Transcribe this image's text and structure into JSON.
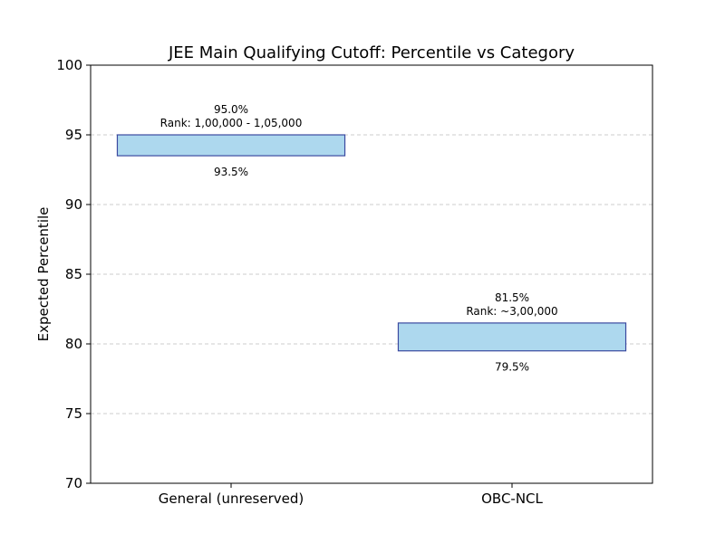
{
  "chart_data": {
    "type": "bar",
    "title": "JEE Main Qualifying Cutoff: Percentile vs Category",
    "xlabel": "",
    "ylabel": "Expected Percentile",
    "ylim": [
      70,
      100
    ],
    "yticks": [
      70,
      75,
      80,
      85,
      90,
      95,
      100
    ],
    "grid": true,
    "categories": [
      "General (unreserved)",
      "OBC-NCL"
    ],
    "ranges": [
      {
        "low": 93.5,
        "high": 95.0,
        "low_label": "93.5%",
        "high_label": "95.0%",
        "rank_label": "Rank: 1,00,000 - 1,05,000"
      },
      {
        "low": 79.5,
        "high": 81.5,
        "low_label": "79.5%",
        "high_label": "81.5%",
        "rank_label": "Rank: ~3,00,000"
      }
    ],
    "colors": {
      "bar_fill": "#add8ee",
      "bar_stroke": "#3b4aa0",
      "grid": "#cccccc"
    }
  }
}
